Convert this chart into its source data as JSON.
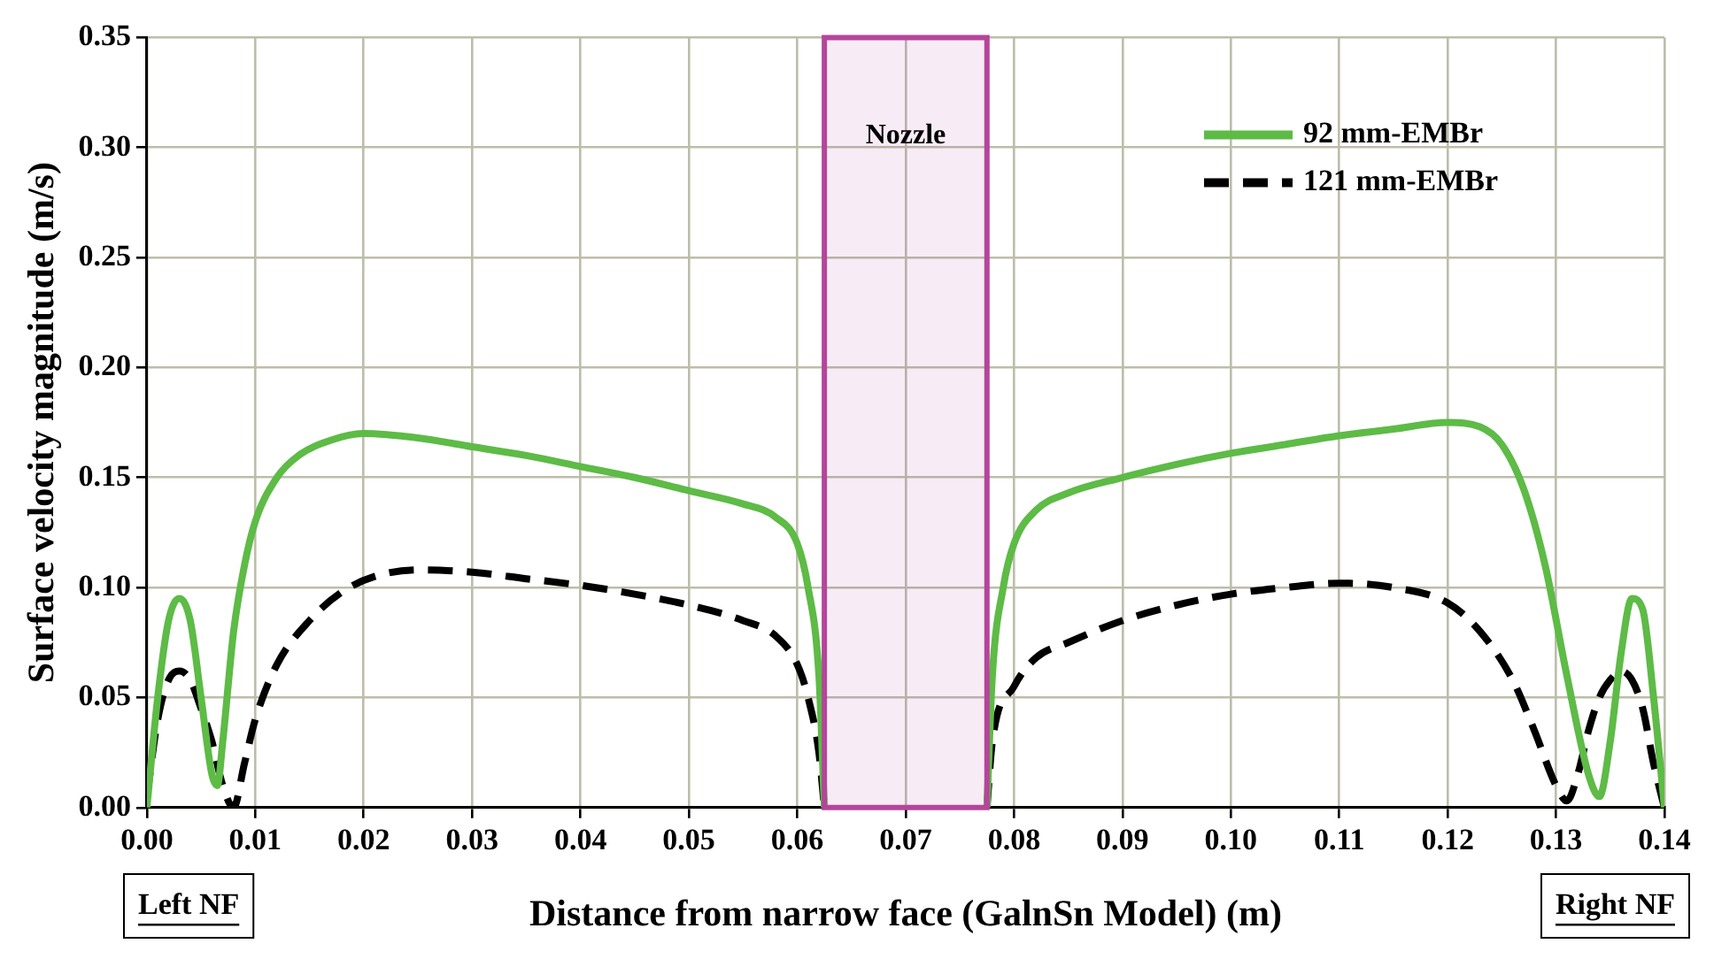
{
  "chart_data": {
    "type": "line",
    "xlabel": "Distance from narrow face (GalnSn Model) (m)",
    "ylabel": "Surface velocity magnitude (m/s)",
    "series": [
      {
        "name": "92 mm-EMBr",
        "color": "#5dbb46",
        "line_style": "solid",
        "x": [
          0,
          0.001,
          0.002,
          0.003,
          0.004,
          0.005,
          0.006,
          0.0065,
          0.007,
          0.008,
          0.009,
          0.01,
          0.012,
          0.014,
          0.017,
          0.02,
          0.025,
          0.03,
          0.035,
          0.04,
          0.045,
          0.05,
          0.055,
          0.058,
          0.06,
          0.061,
          0.062,
          0.0625,
          0.07,
          0.0775,
          0.078,
          0.079,
          0.08,
          0.082,
          0.085,
          0.09,
          0.095,
          0.1,
          0.105,
          0.11,
          0.115,
          0.12,
          0.123,
          0.125,
          0.127,
          0.129,
          0.131,
          0.133,
          0.134,
          0.135,
          0.136,
          0.137,
          0.138,
          0.139,
          0.14
        ],
        "values": [
          0,
          0.05,
          0.085,
          0.095,
          0.085,
          0.05,
          0.015,
          0.01,
          0.03,
          0.08,
          0.11,
          0.13,
          0.15,
          0.16,
          0.167,
          0.17,
          0.168,
          0.164,
          0.16,
          0.155,
          0.15,
          0.144,
          0.138,
          0.132,
          0.12,
          0.1,
          0.06,
          0,
          null,
          0,
          0.06,
          0.1,
          0.12,
          0.135,
          0.143,
          0.15,
          0.156,
          0.161,
          0.165,
          0.169,
          0.172,
          0.175,
          0.173,
          0.165,
          0.145,
          0.11,
          0.06,
          0.015,
          0.005,
          0.03,
          0.07,
          0.095,
          0.09,
          0.05,
          0
        ]
      },
      {
        "name": "121 mm-EMBr",
        "color": "#000000",
        "line_style": "dashed",
        "x": [
          0,
          0.001,
          0.002,
          0.003,
          0.004,
          0.005,
          0.006,
          0.007,
          0.008,
          0.009,
          0.01,
          0.012,
          0.015,
          0.018,
          0.021,
          0.025,
          0.03,
          0.035,
          0.04,
          0.045,
          0.05,
          0.055,
          0.058,
          0.06,
          0.061,
          0.062,
          0.0625,
          0.07,
          0.0775,
          0.078,
          0.08,
          0.082,
          0.085,
          0.09,
          0.095,
          0.1,
          0.105,
          0.11,
          0.115,
          0.12,
          0.123,
          0.126,
          0.128,
          0.13,
          0.131,
          0.132,
          0.133,
          0.134,
          0.135,
          0.136,
          0.137,
          0.138,
          0.139,
          0.14
        ],
        "values": [
          0.005,
          0.04,
          0.058,
          0.062,
          0.058,
          0.045,
          0.03,
          0.01,
          0,
          0.02,
          0.04,
          0.065,
          0.085,
          0.098,
          0.105,
          0.108,
          0.107,
          0.104,
          0.101,
          0.097,
          0.092,
          0.085,
          0.078,
          0.065,
          0.05,
          0.025,
          0,
          null,
          0,
          0.03,
          0.055,
          0.068,
          0.075,
          0.085,
          0.092,
          0.097,
          0.1,
          0.102,
          0.1,
          0.093,
          0.08,
          0.058,
          0.035,
          0.01,
          0.003,
          0.015,
          0.035,
          0.05,
          0.058,
          0.062,
          0.058,
          0.045,
          0.02,
          0
        ]
      }
    ],
    "xlim": [
      0,
      0.14
    ],
    "xticks": [
      {
        "value": 0,
        "label": "0.00"
      },
      {
        "value": 0.01,
        "label": "0.01"
      },
      {
        "value": 0.02,
        "label": "0.02"
      },
      {
        "value": 0.03,
        "label": "0.03"
      },
      {
        "value": 0.04,
        "label": "0.04"
      },
      {
        "value": 0.05,
        "label": "0.05"
      },
      {
        "value": 0.06,
        "label": "0.06"
      },
      {
        "value": 0.07,
        "label": "0.07"
      },
      {
        "value": 0.08,
        "label": "0.08"
      },
      {
        "value": 0.09,
        "label": "0.09"
      },
      {
        "value": 0.1,
        "label": "0.10"
      },
      {
        "value": 0.11,
        "label": "0.11"
      },
      {
        "value": 0.12,
        "label": "0.12"
      },
      {
        "value": 0.13,
        "label": "0.13"
      },
      {
        "value": 0.14,
        "label": "0.14"
      }
    ],
    "ylim": [
      0,
      0.35
    ],
    "yticks": [
      {
        "value": 0,
        "label": "0.00"
      },
      {
        "value": 0.05,
        "label": "0.05"
      },
      {
        "value": 0.1,
        "label": "0.10"
      },
      {
        "value": 0.15,
        "label": "0.15"
      },
      {
        "value": 0.2,
        "label": "0.20"
      },
      {
        "value": 0.25,
        "label": "0.25"
      },
      {
        "value": 0.3,
        "label": "0.30"
      },
      {
        "value": 0.35,
        "label": "0.35"
      }
    ],
    "bands": [
      {
        "axis": "x",
        "from": 0.0625,
        "to": 0.0775,
        "label": "Nozzle",
        "color": "#b5459b"
      }
    ],
    "annotations": [
      "Left NF",
      "Right NF"
    ],
    "grid": true,
    "legend": "top right",
    "marker": "none"
  }
}
